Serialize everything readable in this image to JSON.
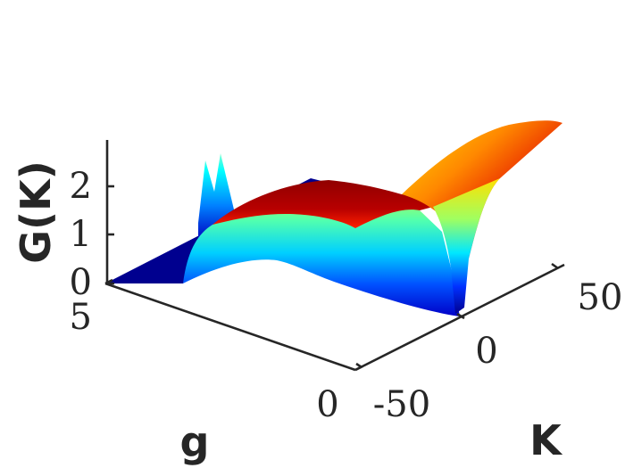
{
  "chart_data": {
    "type": "surface",
    "title": "",
    "xlabel": "g",
    "ylabel": "K",
    "zlabel": "G(K)",
    "colormap": "jet",
    "view": "3d-perspective",
    "xlim": [
      0,
      5
    ],
    "ylim": [
      -60,
      60
    ],
    "zlim": [
      0,
      2.8
    ],
    "x_ticks": [
      0,
      5
    ],
    "x_tick_labels": [
      "0",
      "5"
    ],
    "y_ticks": [
      -50,
      0,
      50
    ],
    "y_tick_labels": [
      "-50",
      "0",
      "50"
    ],
    "z_ticks": [
      0,
      1,
      2
    ],
    "z_tick_labels": [
      "0",
      "1",
      "2"
    ],
    "grid": false,
    "surface_regions": [
      {
        "g_range": [
          0,
          0.3
        ],
        "K_range": [
          -60,
          60
        ],
        "G": 0
      },
      {
        "g_range": [
          0.3,
          5
        ],
        "K_range": [
          -60,
          -48
        ],
        "G": 0
      },
      {
        "g_range": [
          0.3,
          5
        ],
        "K_range": [
          -48,
          18
        ],
        "G_range": [
          1.0,
          2.5
        ]
      },
      {
        "g_range": [
          0.3,
          5
        ],
        "K_range": [
          18,
          60
        ],
        "G_range": [
          0,
          2.8
        ]
      }
    ]
  }
}
